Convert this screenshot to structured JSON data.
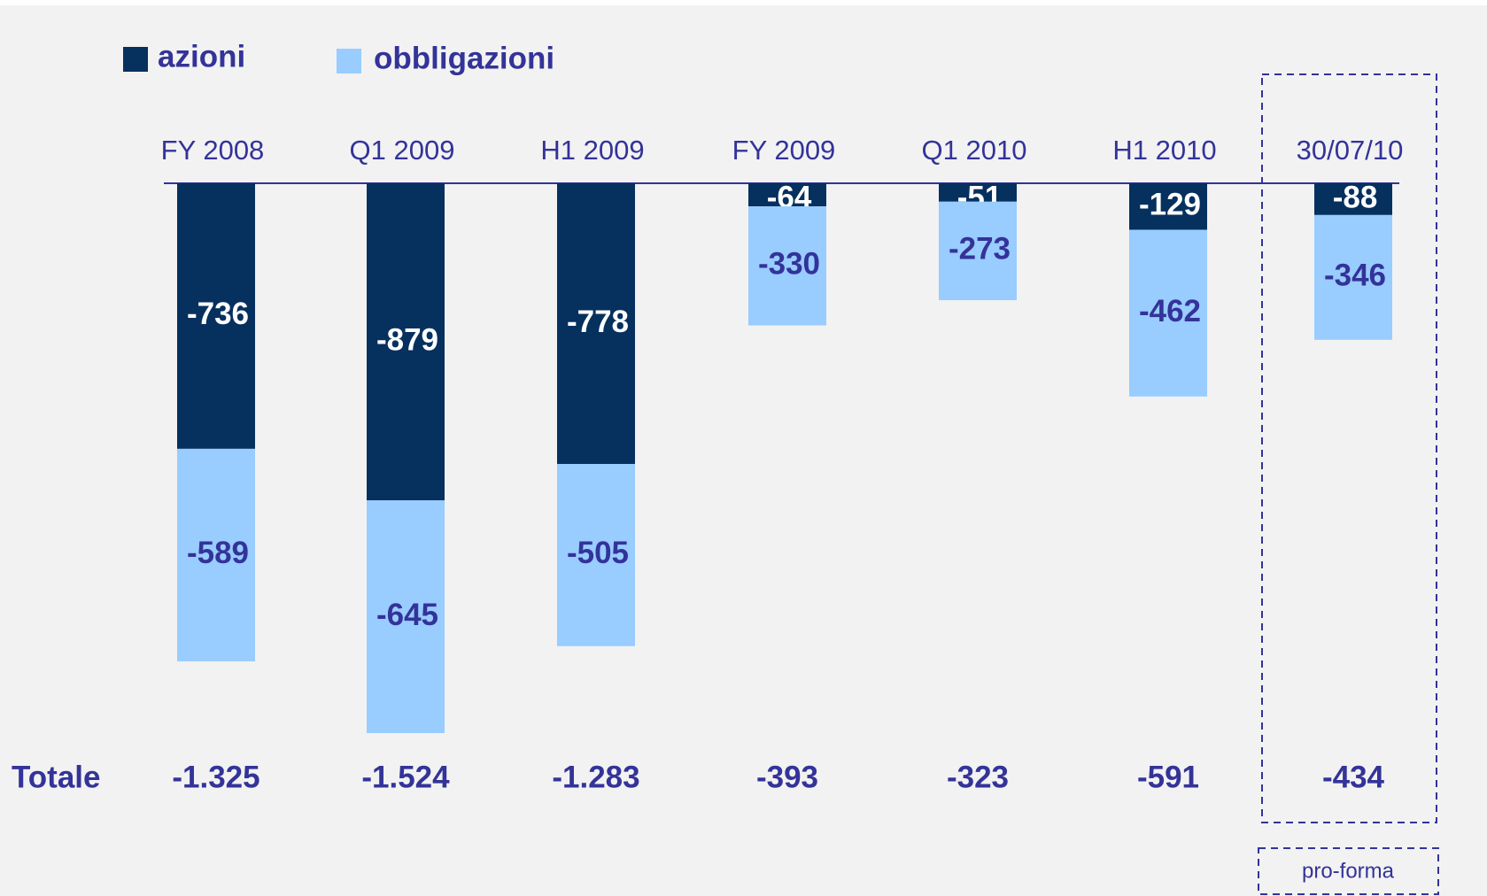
{
  "chart_data": {
    "type": "stacked-bar",
    "categories": [
      "FY 2008",
      "Q1 2009",
      "H1 2009",
      "FY 2009",
      "Q1 2010",
      "H1 2010",
      "30/07/10"
    ],
    "series": [
      {
        "name": "azioni",
        "color": "#06305e",
        "label_color": "#ffffff",
        "values": [
          -736,
          -879,
          -778,
          -64,
          -51,
          -129,
          -88
        ]
      },
      {
        "name": "obbligazioni",
        "color": "#99ccff",
        "label_color": "#333399",
        "values": [
          -589,
          -645,
          -505,
          -330,
          -273,
          -462,
          -346
        ]
      }
    ],
    "totals": {
      "label": "Totale",
      "values": [
        -1325,
        -1524,
        -1283,
        -393,
        -323,
        -591,
        -434
      ],
      "value_labels": [
        "-1.325",
        "-1.524",
        "-1.283",
        "-393",
        "-323",
        "-591",
        "-434"
      ]
    },
    "annotation": "pro-forma"
  }
}
